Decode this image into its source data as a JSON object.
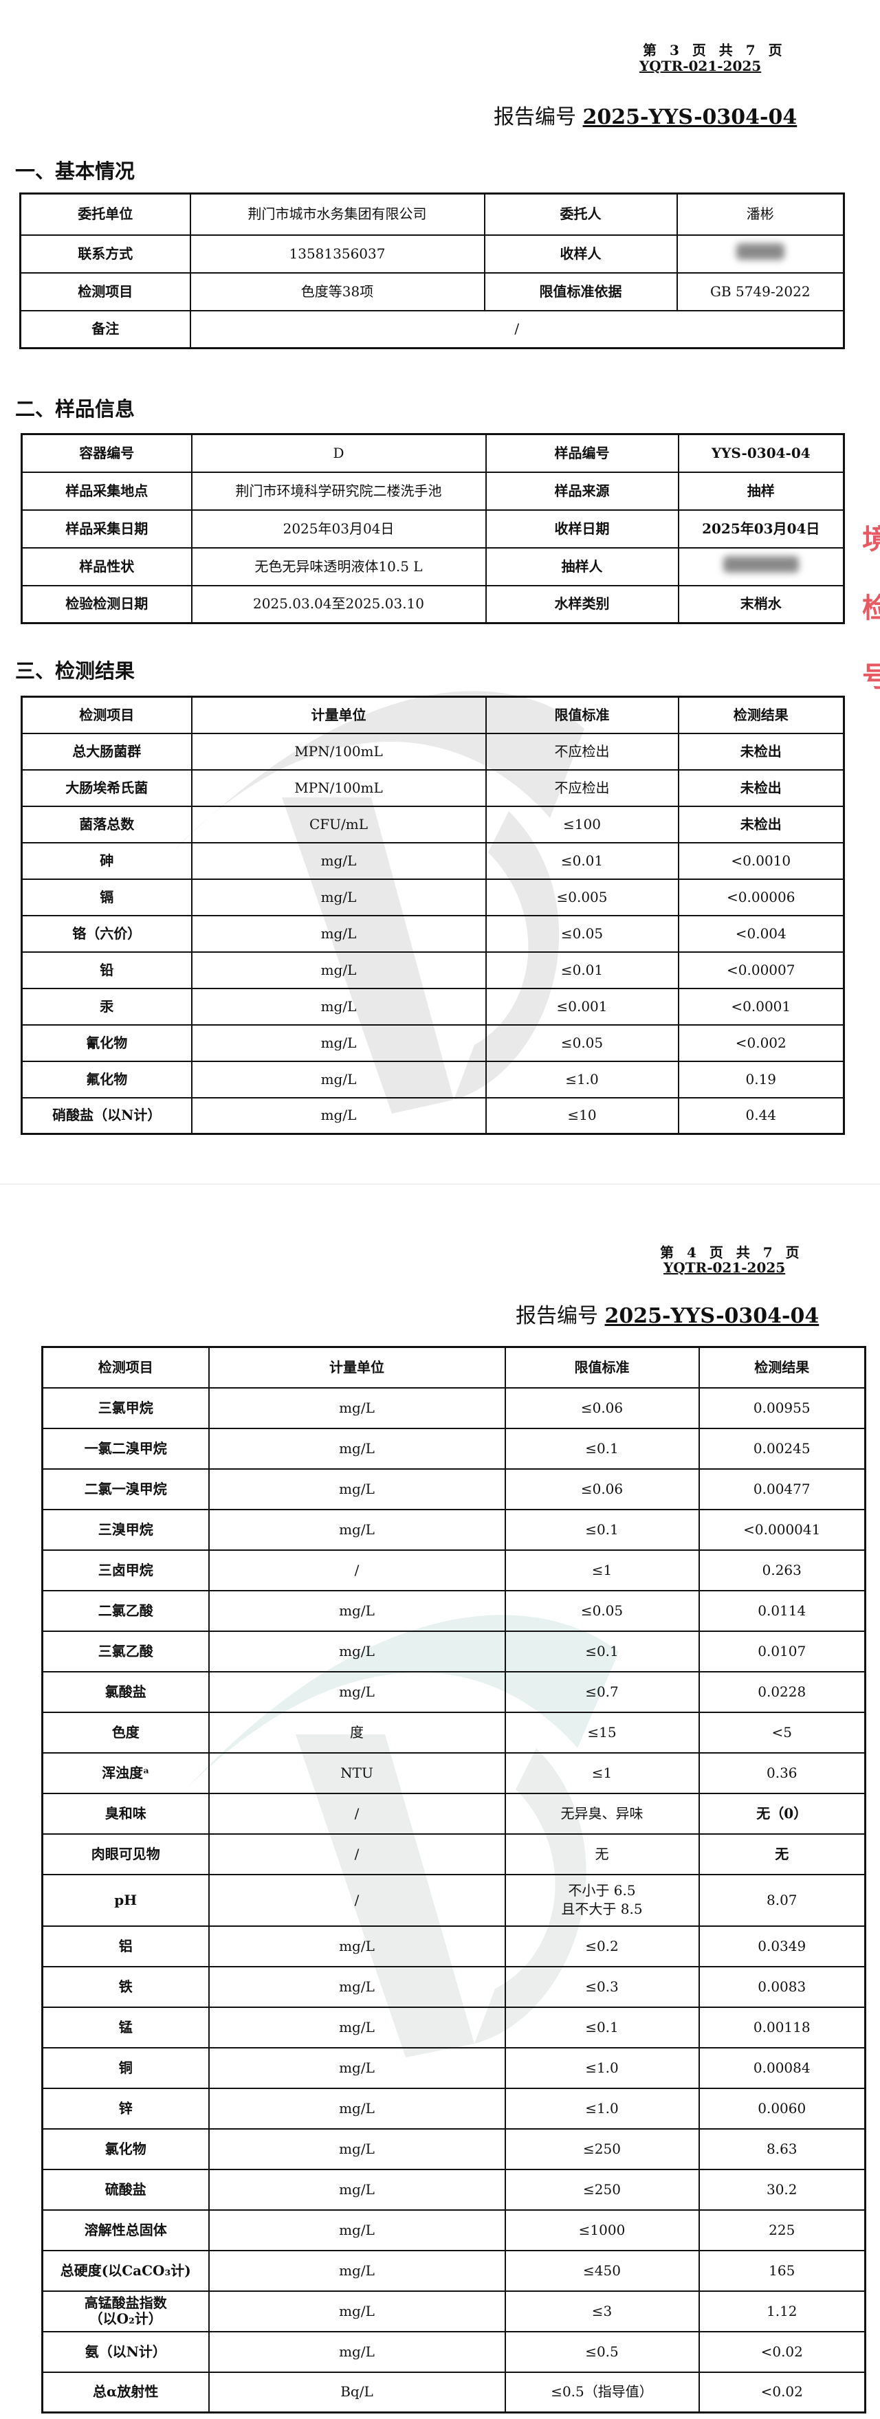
{
  "page1": {
    "page_number": "第 3 页 共 7 页",
    "form_code": "YQTR-021-2025",
    "report_label": "报告编号",
    "report_number": "2025-YYS-0304-04",
    "section1": {
      "title": "一、基本情况",
      "rows": [
        [
          "委托单位",
          "荆门市城市水务集团有限公司",
          "委托人",
          "潘彬"
        ],
        [
          "联系方式",
          "13581356037",
          "收样人",
          ""
        ],
        [
          "检测项目",
          "色度等38项",
          "限值标准依据",
          "GB 5749-2022"
        ]
      ],
      "remark_label": "备注",
      "remark_value": "/"
    },
    "section2": {
      "title": "二、样品信息",
      "rows": [
        [
          "容器编号",
          "D",
          "样品编号",
          "YYS-0304-04"
        ],
        [
          "样品采集地点",
          "荆门市环境科学研究院二楼洗手池",
          "样品来源",
          "抽样"
        ],
        [
          "样品采集日期",
          "2025年03月04日",
          "收样日期",
          "2025年03月04日"
        ],
        [
          "样品性状",
          "无色无异味透明液体10.5 L",
          "抽样人",
          ""
        ],
        [
          "检验检测日期",
          "2025.03.04至2025.03.10",
          "水样类别",
          "末梢水"
        ]
      ]
    },
    "section3": {
      "title": "三、检测结果",
      "headers": [
        "检测项目",
        "计量单位",
        "限值标准",
        "检测结果"
      ],
      "rows": [
        [
          "总大肠菌群",
          "MPN/100mL",
          "不应检出",
          "未检出"
        ],
        [
          "大肠埃希氏菌",
          "MPN/100mL",
          "不应检出",
          "未检出"
        ],
        [
          "菌落总数",
          "CFU/mL",
          "≤100",
          "未检出"
        ],
        [
          "砷",
          "mg/L",
          "≤0.01",
          "<0.0010"
        ],
        [
          "镉",
          "mg/L",
          "≤0.005",
          "<0.00006"
        ],
        [
          "铬（六价）",
          "mg/L",
          "≤0.05",
          "<0.004"
        ],
        [
          "铅",
          "mg/L",
          "≤0.01",
          "<0.00007"
        ],
        [
          "汞",
          "mg/L",
          "≤0.001",
          "<0.0001"
        ],
        [
          "氰化物",
          "mg/L",
          "≤0.05",
          "<0.002"
        ],
        [
          "氟化物",
          "mg/L",
          "≤1.0",
          "0.19"
        ],
        [
          "硝酸盐（以N计）",
          "mg/L",
          "≤10",
          "0.44"
        ]
      ]
    }
  },
  "page2": {
    "page_number": "第 4 页 共 7 页",
    "form_code": "YQTR-021-2025",
    "report_label": "报告编号",
    "report_number": "2025-YYS-0304-04",
    "headers": [
      "检测项目",
      "计量单位",
      "限值标准",
      "检测结果"
    ],
    "rows": [
      [
        "三氯甲烷",
        "mg/L",
        "≤0.06",
        "0.00955"
      ],
      [
        "一氯二溴甲烷",
        "mg/L",
        "≤0.1",
        "0.00245"
      ],
      [
        "二氯一溴甲烷",
        "mg/L",
        "≤0.06",
        "0.00477"
      ],
      [
        "三溴甲烷",
        "mg/L",
        "≤0.1",
        "<0.000041"
      ],
      [
        "三卤甲烷",
        "/",
        "≤1",
        "0.263"
      ],
      [
        "二氯乙酸",
        "mg/L",
        "≤0.05",
        "0.0114"
      ],
      [
        "三氯乙酸",
        "mg/L",
        "≤0.1",
        "0.0107"
      ],
      [
        "氯酸盐",
        "mg/L",
        "≤0.7",
        "0.0228"
      ],
      [
        "色度",
        "度",
        "≤15",
        "<5"
      ],
      [
        "浑浊度ᵃ",
        "NTU",
        "≤1",
        "0.36"
      ],
      [
        "臭和味",
        "/",
        "无异臭、异味",
        "无（0）"
      ],
      [
        "肉眼可见物",
        "/",
        "无",
        "无"
      ],
      [
        "pH",
        "/",
        "不小于 6.5\n且不大于 8.5",
        "8.07"
      ],
      [
        "铝",
        "mg/L",
        "≤0.2",
        "0.0349"
      ],
      [
        "铁",
        "mg/L",
        "≤0.3",
        "0.0083"
      ],
      [
        "锰",
        "mg/L",
        "≤0.1",
        "0.00118"
      ],
      [
        "铜",
        "mg/L",
        "≤1.0",
        "0.00084"
      ],
      [
        "锌",
        "mg/L",
        "≤1.0",
        "0.0060"
      ],
      [
        "氯化物",
        "mg/L",
        "≤250",
        "8.63"
      ],
      [
        "硫酸盐",
        "mg/L",
        "≤250",
        "30.2"
      ],
      [
        "溶解性总固体",
        "mg/L",
        "≤1000",
        "225"
      ],
      [
        "总硬度(以CaCO₃计)",
        "mg/L",
        "≤450",
        "165"
      ],
      [
        "高锰酸盐指数\n（以O₂计）",
        "mg/L",
        "≤3",
        "1.12"
      ],
      [
        "氨（以N计）",
        "mg/L",
        "≤0.5",
        "<0.02"
      ],
      [
        "总α放射性",
        "Bq/L",
        "≤0.5（指导值）",
        "<0.02"
      ]
    ]
  },
  "colors": {
    "stamp": "#e0303a",
    "watermark": "#7fb7b0"
  },
  "icons": {
    "watermark": "agency-logo-watermark",
    "stamp": "red-seal-stamp"
  }
}
